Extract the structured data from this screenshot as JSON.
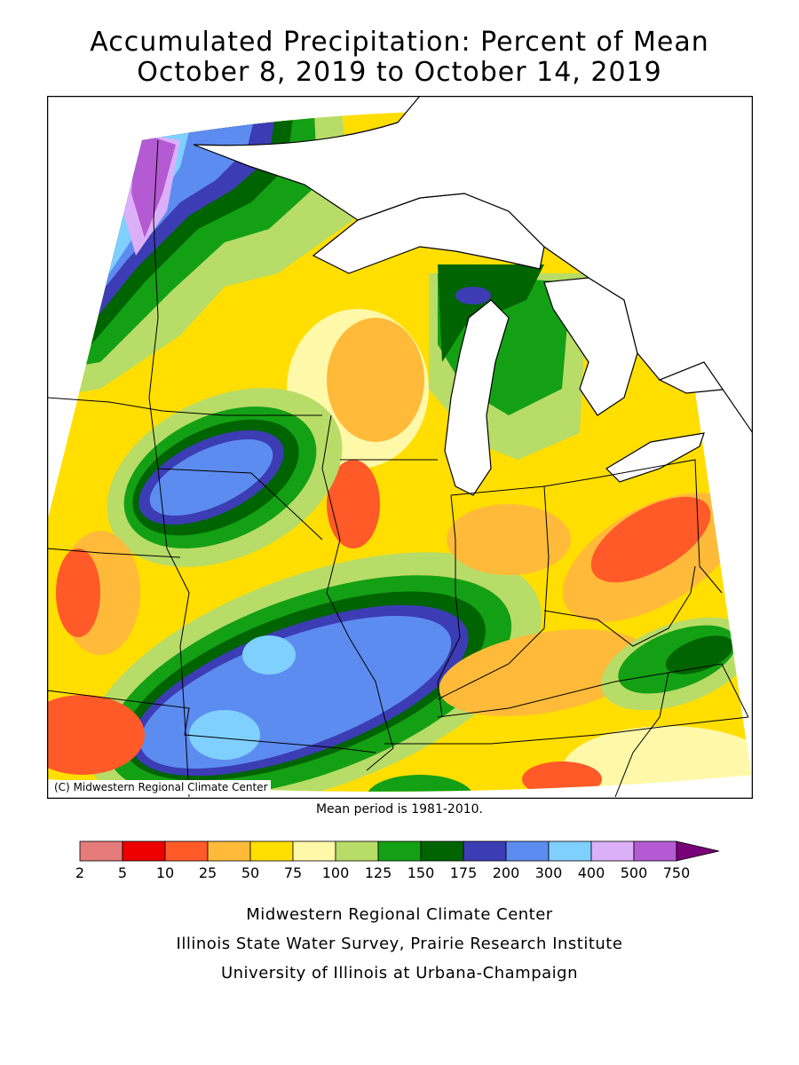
{
  "title_line1": "Accumulated Precipitation: Percent of Mean",
  "title_line2": "October 8, 2019 to October 14, 2019",
  "copyright": "(C) Midwestern Regional Climate Center",
  "mean_period": "Mean period is 1981-2010.",
  "legend": {
    "labels": [
      "2",
      "5",
      "10",
      "25",
      "50",
      "75",
      "100",
      "125",
      "150",
      "175",
      "200",
      "300",
      "400",
      "500",
      "750"
    ],
    "colors": [
      "#e57b7b",
      "#ee0000",
      "#ff5a28",
      "#ffba3a",
      "#ffde00",
      "#fff8a8",
      "#b8dc68",
      "#14a014",
      "#006400",
      "#3c3cb4",
      "#5c8cf0",
      "#80d0ff",
      "#dcb0f8",
      "#b45ad2",
      "#780078"
    ]
  },
  "credits": {
    "line1": "Midwestern Regional Climate Center",
    "line2": "Illinois State Water Survey, Prairie Research Institute",
    "line3": "University of Illinois at Urbana-Champaign"
  }
}
